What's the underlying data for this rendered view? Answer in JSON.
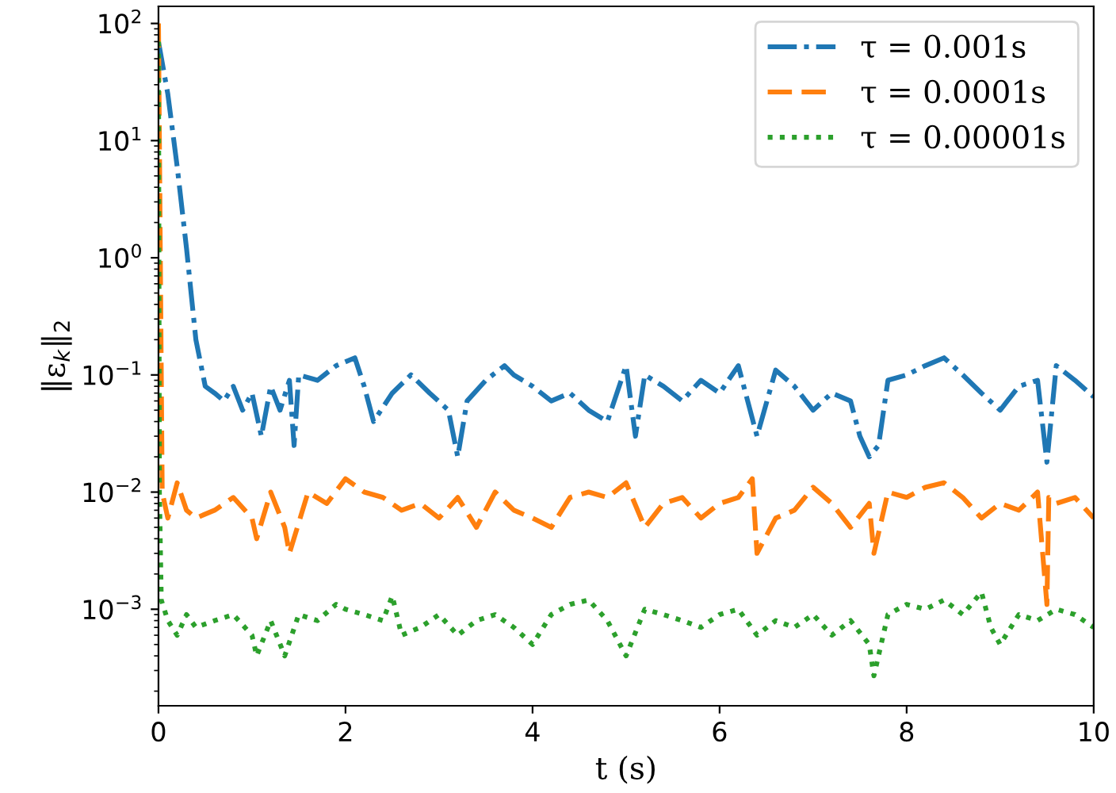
{
  "chart_data": {
    "type": "line",
    "xlabel": "t (s)",
    "ylabel": "‖ε$_{k}$‖$_{2}$",
    "log": "y",
    "xlim": [
      0,
      10
    ],
    "ylim": [
      0.00015,
      140
    ],
    "xticks": [
      0,
      2,
      4,
      6,
      8,
      10
    ],
    "yticks": [
      {
        "value": 0.001,
        "label": "10$^{−3}$"
      },
      {
        "value": 0.01,
        "label": "10$^{−2}$"
      },
      {
        "value": 0.1,
        "label": "10$^{−1}$"
      },
      {
        "value": 1,
        "label": "10$^{0}$"
      },
      {
        "value": 10,
        "label": "10$^{1}$"
      },
      {
        "value": 100,
        "label": "10$^{2}$"
      }
    ],
    "grid": false,
    "legend": "top right",
    "marker": "none",
    "series": [
      {
        "name": "τ = 0.001s",
        "color": "#1f77b4",
        "line_style": "dashdot",
        "x": [
          0,
          0.1,
          0.2,
          0.3,
          0.4,
          0.5,
          0.6,
          0.7,
          0.8,
          0.9,
          1.0,
          1.1,
          1.2,
          1.3,
          1.4,
          1.45,
          1.5,
          1.7,
          1.9,
          2.1,
          2.2,
          2.3,
          2.5,
          2.7,
          2.9,
          3.1,
          3.2,
          3.3,
          3.5,
          3.7,
          3.8,
          4.0,
          4.2,
          4.4,
          4.6,
          4.8,
          5.0,
          5.1,
          5.2,
          5.4,
          5.6,
          5.8,
          6.0,
          6.2,
          6.4,
          6.6,
          6.8,
          7.0,
          7.2,
          7.4,
          7.5,
          7.6,
          7.7,
          7.8,
          8.0,
          8.2,
          8.4,
          8.6,
          8.8,
          9.0,
          9.2,
          9.4,
          9.5,
          9.6,
          9.8,
          10.0
        ],
        "values": [
          70,
          25,
          6,
          1.2,
          0.2,
          0.08,
          0.07,
          0.06,
          0.08,
          0.05,
          0.07,
          0.03,
          0.08,
          0.05,
          0.09,
          0.025,
          0.1,
          0.09,
          0.12,
          0.14,
          0.08,
          0.04,
          0.07,
          0.1,
          0.07,
          0.05,
          0.02,
          0.06,
          0.09,
          0.12,
          0.1,
          0.08,
          0.06,
          0.07,
          0.05,
          0.04,
          0.12,
          0.03,
          0.1,
          0.08,
          0.06,
          0.09,
          0.07,
          0.12,
          0.03,
          0.11,
          0.08,
          0.05,
          0.07,
          0.06,
          0.03,
          0.02,
          0.025,
          0.09,
          0.1,
          0.12,
          0.14,
          0.1,
          0.07,
          0.05,
          0.08,
          0.09,
          0.018,
          0.12,
          0.09,
          0.065
        ]
      },
      {
        "name": "τ = 0.0001s",
        "color": "#ff7f0e",
        "line_style": "dashed",
        "x": [
          0,
          0.02,
          0.04,
          0.1,
          0.2,
          0.3,
          0.4,
          0.6,
          0.8,
          1.0,
          1.05,
          1.2,
          1.35,
          1.4,
          1.6,
          1.8,
          2.0,
          2.2,
          2.4,
          2.6,
          2.8,
          3.0,
          3.2,
          3.4,
          3.6,
          3.8,
          4.0,
          4.2,
          4.4,
          4.6,
          4.8,
          5.0,
          5.2,
          5.4,
          5.6,
          5.8,
          6.0,
          6.2,
          6.35,
          6.4,
          6.6,
          6.8,
          7.0,
          7.2,
          7.4,
          7.6,
          7.65,
          7.8,
          8.0,
          8.2,
          8.4,
          8.6,
          8.8,
          9.0,
          9.2,
          9.4,
          9.5,
          9.52,
          9.6,
          9.8,
          10.0
        ],
        "values": [
          100,
          1,
          0.01,
          0.006,
          0.012,
          0.007,
          0.006,
          0.007,
          0.009,
          0.006,
          0.004,
          0.01,
          0.005,
          0.003,
          0.01,
          0.008,
          0.013,
          0.01,
          0.009,
          0.007,
          0.008,
          0.006,
          0.009,
          0.005,
          0.01,
          0.007,
          0.006,
          0.005,
          0.009,
          0.01,
          0.009,
          0.012,
          0.005,
          0.008,
          0.009,
          0.006,
          0.008,
          0.009,
          0.013,
          0.003,
          0.006,
          0.007,
          0.011,
          0.008,
          0.005,
          0.008,
          0.003,
          0.01,
          0.009,
          0.011,
          0.012,
          0.009,
          0.006,
          0.008,
          0.007,
          0.01,
          0.0011,
          0.009,
          0.008,
          0.009,
          0.006
        ]
      },
      {
        "name": "τ = 0.00001s",
        "color": "#2ca02c",
        "line_style": "dotted",
        "x": [
          0,
          0.01,
          0.03,
          0.1,
          0.2,
          0.3,
          0.4,
          0.6,
          0.8,
          1.0,
          1.05,
          1.2,
          1.35,
          1.5,
          1.7,
          1.9,
          2.0,
          2.2,
          2.4,
          2.5,
          2.6,
          2.8,
          3.0,
          3.2,
          3.4,
          3.6,
          3.8,
          4.0,
          4.2,
          4.4,
          4.6,
          4.8,
          5.0,
          5.2,
          5.4,
          5.6,
          5.8,
          6.0,
          6.2,
          6.4,
          6.6,
          6.8,
          7.0,
          7.2,
          7.4,
          7.6,
          7.65,
          7.8,
          8.0,
          8.2,
          8.4,
          8.6,
          8.8,
          8.9,
          9.0,
          9.2,
          9.4,
          9.6,
          9.8,
          10.0
        ],
        "values": [
          70,
          0.01,
          0.0012,
          0.0008,
          0.0006,
          0.0009,
          0.0007,
          0.0008,
          0.0009,
          0.0006,
          0.0004,
          0.0008,
          0.0004,
          0.0009,
          0.0008,
          0.0011,
          0.001,
          0.0009,
          0.0008,
          0.0013,
          0.0006,
          0.0007,
          0.0009,
          0.0006,
          0.0008,
          0.0009,
          0.0007,
          0.0005,
          0.0009,
          0.0011,
          0.0012,
          0.0008,
          0.0004,
          0.001,
          0.0009,
          0.0008,
          0.0007,
          0.0009,
          0.001,
          0.0006,
          0.0008,
          0.0007,
          0.0009,
          0.0006,
          0.0008,
          0.0005,
          0.00027,
          0.0009,
          0.0011,
          0.001,
          0.0012,
          0.0009,
          0.0014,
          0.0007,
          0.0005,
          0.0009,
          0.0008,
          0.001,
          0.0009,
          0.0007
        ]
      }
    ]
  }
}
